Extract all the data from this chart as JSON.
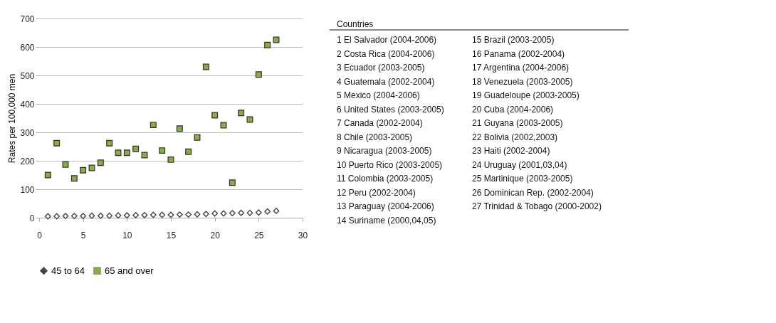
{
  "chart_data": {
    "type": "scatter",
    "ylabel": "Rates per 100,000 men",
    "x": [
      1,
      2,
      3,
      4,
      5,
      6,
      7,
      8,
      9,
      10,
      11,
      12,
      13,
      14,
      15,
      16,
      17,
      18,
      19,
      20,
      21,
      22,
      23,
      24,
      25,
      26,
      27
    ],
    "series": [
      {
        "name": "45 to 64",
        "color": "#444444",
        "marker": "diamond",
        "values": [
          5,
          5,
          6,
          6,
          6,
          7,
          7,
          7,
          8,
          8,
          9,
          9,
          10,
          10,
          10,
          11,
          11,
          12,
          13,
          15,
          15,
          16,
          17,
          17,
          18,
          22,
          24
        ]
      },
      {
        "name": "65 and over",
        "color": "#8aab45",
        "marker": "square",
        "values": [
          150,
          262,
          187,
          138,
          167,
          175,
          193,
          262,
          228,
          228,
          242,
          220,
          326,
          236,
          204,
          313,
          232,
          282,
          530,
          360,
          325,
          123,
          368,
          345,
          503,
          607,
          625
        ]
      }
    ],
    "xlim": [
      0,
      30
    ],
    "xticks": [
      0,
      5,
      10,
      15,
      20,
      25,
      30
    ],
    "ylim": [
      0,
      700
    ],
    "yticks": [
      0,
      100,
      200,
      300,
      400,
      500,
      600,
      700
    ],
    "grid": "y",
    "legend": "bottom",
    "annotations": [
      "Countries",
      "1 El Salvador (2004-2006)",
      "2 Costa Rica (2004-2006)",
      "3 Ecuador (2003-2005)",
      "4 Guatemala (2002-2004)",
      "5 Mexico (2004-2006)",
      "6 United States (2003-2005)",
      "7 Canada (2002-2004)",
      "8 Chile (2003-2005)",
      "9 Nicaragua (2003-2005)",
      "10 Puerto Rico (2003-2005)",
      "11 Colombia (2003-2005)",
      "12 Peru (2002-2004)",
      "13 Paraguay (2004-2006)",
      "14 Suriname (2000,04,05)",
      "15 Brazil (2003-2005)",
      "16 Panama (2002-2004)",
      "17 Argentina (2004-2006)",
      "18 Venezuela (2003-2005)",
      "19 Guadeloupe (2003-2005)",
      "20 Cuba (2004-2006)",
      "21 Guyana (2003-2005)",
      "22 Bolivia (2002,2003)",
      "23 Haiti (2002-2004)",
      "24 Uruguay (2001,03,04)",
      "25 Martinique (2003-2005)",
      "26 Dominican Rep. (2002-2004)",
      "27 Trinidad & Tobago (2000-2002)"
    ]
  }
}
